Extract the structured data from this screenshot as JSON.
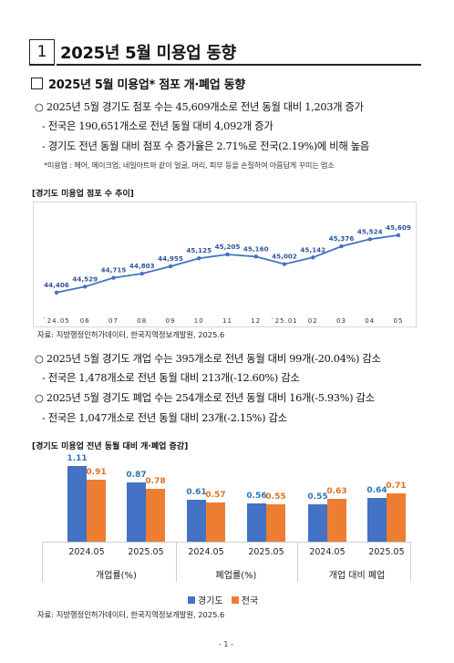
{
  "header": {
    "number": "1",
    "title": "2025년 5월 미용업 동향"
  },
  "section_title": "2025년 5월 미용업* 점포 개·폐업 동향",
  "summary1": {
    "main": "○ 2025년 5월 경기도 점포 수는 45,609개소로 전년 동월 대비 1,203개 증가",
    "sub1": "- 전국은 190,651개소로 전년 동월 대비 4,092개 증가",
    "sub2": "- 경기도 전년 동월 대비 점포 수 증가율은 2.71%로 전국(2.19%)에 비해 높음",
    "note": "*미용업 : 헤어, 메이크업, 네일아트와 같이 얼굴, 머리, 피부 등을 손질하여 아름답게 꾸미는 업소"
  },
  "chart1": {
    "title": "[경기도 미용업 점포 수 추이]",
    "source": "자료: 지방행정인허가데이터, 한국지역정보개발원, 2025.6"
  },
  "summary2": {
    "l1": "○ 2025년 5월 경기도 개업 수는 395개소로 전년 동월 대비 99개(-20.04%) 감소",
    "l2": "- 전국은  1,478개소로 전년 동월 대비 213개(-12.60%) 감소",
    "l3": "○ 2025년 5월 경기도 폐업 수는 254개소로 전년 동월 대비 16개(-5.93%) 감소",
    "l4": "- 전국은  1,047개소로 전년 동월 대비 23개(-2.15%) 감소"
  },
  "chart2": {
    "title": "[경기도 미용업 전년 동월 대비 개·폐업 증감]",
    "source": "자료: 지방행정인허가데이터, 한국지역정보개발원, 2025.6",
    "legend": {
      "gg": "경기도",
      "nat": "전국"
    },
    "groups": [
      "개업률(%)",
      "폐업률(%)",
      "개업 대비 폐업"
    ]
  },
  "page_number": "- 1 -",
  "colors": {
    "gyeonggi": "#4472c4",
    "national": "#ed7d31",
    "line": "#4472c4"
  },
  "chart_data": [
    {
      "type": "line",
      "title": "[경기도 미용업 점포 수 추이]",
      "x": [
        "`24.05",
        "06",
        "07",
        "08",
        "09",
        "10",
        "11",
        "12",
        "`25.01",
        "02",
        "03",
        "04",
        "05"
      ],
      "series": [
        {
          "name": "",
          "values": [
            44406,
            44529,
            44715,
            44803,
            44955,
            45125,
            45205,
            45160,
            45002,
            45142,
            45376,
            45524,
            45609
          ]
        }
      ],
      "value_labels": [
        "44,406",
        "44,529",
        "44,715",
        "44,803",
        "44,955",
        "45,125",
        "45,205",
        "45,160",
        "45,002",
        "45,142",
        "45,376",
        "45,524",
        "45,609"
      ],
      "grid": false
    },
    {
      "type": "bar",
      "title": "[경기도 미용업 전년 동월 대비 개·폐업 증감]",
      "categories": [
        "2024.05",
        "2025.05",
        "2024.05",
        "2025.05",
        "2024.05",
        "2025.05"
      ],
      "groups": [
        "개업률(%)",
        "폐업률(%)",
        "개업 대비 폐업"
      ],
      "series": [
        {
          "name": "경기도",
          "values": [
            1.11,
            0.87,
            0.61,
            0.56,
            0.55,
            0.64
          ]
        },
        {
          "name": "전국",
          "values": [
            0.91,
            0.78,
            0.57,
            0.55,
            0.63,
            0.71
          ]
        }
      ],
      "value_labels": {
        "경기도": [
          "1.11",
          "0.87",
          "0.61",
          "0.56",
          "0.55",
          "0.64"
        ],
        "전국": [
          "0.91",
          "0.78",
          "0.57",
          "0.55",
          "0.63",
          "0.71"
        ]
      },
      "legend": "bottom-center"
    }
  ]
}
